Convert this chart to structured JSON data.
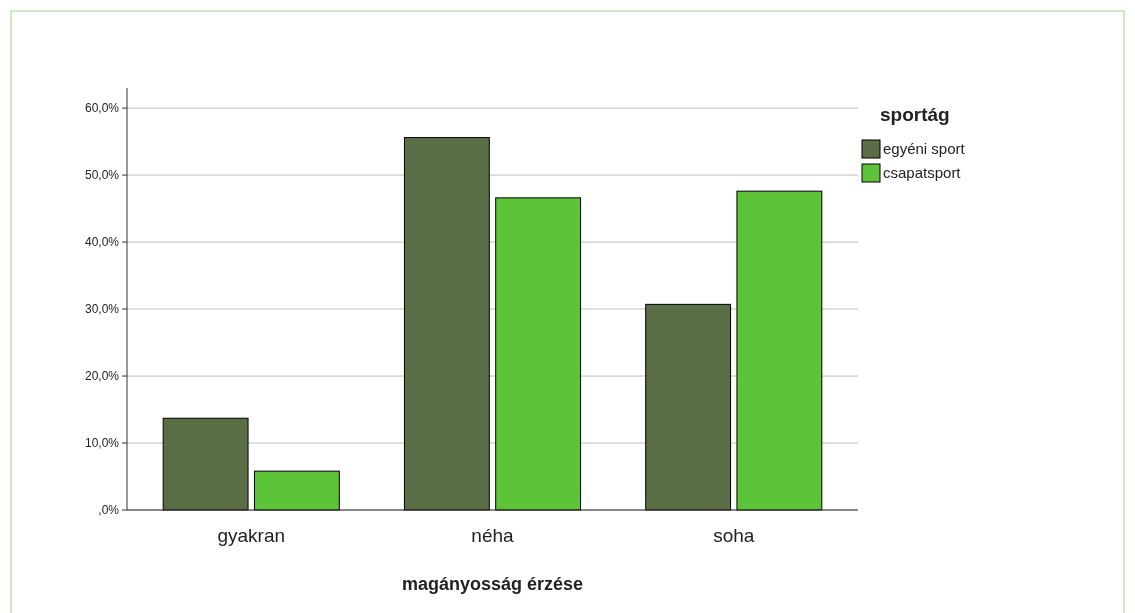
{
  "chart_data": {
    "type": "bar",
    "xlabel": "magányosság érzése",
    "legend_title": "sportág",
    "categories": [
      "gyakran",
      "néha",
      "soha"
    ],
    "series": [
      {
        "name": "egyéni sport",
        "color": "#5a6e46",
        "values": [
          13.7,
          55.6,
          30.7
        ]
      },
      {
        "name": "csapatsport",
        "color": "#5dc43a",
        "values": [
          5.8,
          46.6,
          47.6
        ]
      }
    ],
    "ylim": [
      0,
      63
    ],
    "yticks": [
      {
        "value": 0,
        "label": ",0%"
      },
      {
        "value": 10,
        "label": "10,0%"
      },
      {
        "value": 20,
        "label": "20,0%"
      },
      {
        "value": 30,
        "label": "30,0%"
      },
      {
        "value": 40,
        "label": "40,0%"
      },
      {
        "value": 50,
        "label": "50,0%"
      },
      {
        "value": 60,
        "label": "60,0%"
      }
    ],
    "grid": "y",
    "legend": "top right"
  }
}
